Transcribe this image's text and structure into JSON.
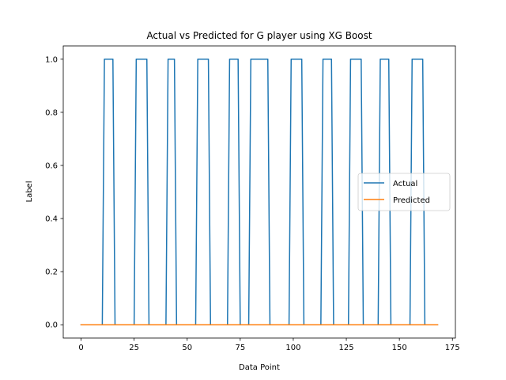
{
  "chart_data": {
    "type": "line",
    "title": "Actual vs Predicted for G player using XG Boost",
    "xlabel": "Data Point",
    "ylabel": "Label",
    "xlim": [
      -8.4,
      176.4
    ],
    "ylim": [
      -0.05,
      1.05
    ],
    "xticks": [
      0,
      25,
      50,
      75,
      100,
      125,
      150,
      175
    ],
    "yticks": [
      0.0,
      0.2,
      0.4,
      0.6,
      0.8,
      1.0
    ],
    "xtick_labels": [
      "0",
      "25",
      "50",
      "75",
      "100",
      "125",
      "150",
      "175"
    ],
    "ytick_labels": [
      "0.0",
      "0.2",
      "0.4",
      "0.6",
      "0.8",
      "1.0"
    ],
    "grid": false,
    "legend": "center-right",
    "series": [
      {
        "name": "Actual",
        "color": "#1f77b4",
        "x": [
          0,
          10,
          11,
          15,
          16,
          25,
          26,
          31,
          32,
          40,
          41,
          44,
          45,
          54,
          55,
          60,
          61,
          69,
          70,
          74,
          75,
          79,
          80,
          88,
          89,
          98,
          99,
          104,
          105,
          113,
          114,
          118,
          119,
          126,
          127,
          132,
          133,
          140,
          141,
          145,
          146,
          155,
          156,
          161,
          162,
          168
        ],
        "y": [
          0,
          0,
          1,
          1,
          0,
          0,
          1,
          1,
          0,
          0,
          1,
          1,
          0,
          0,
          1,
          1,
          0,
          0,
          1,
          1,
          0,
          0,
          1,
          1,
          0,
          0,
          1,
          1,
          0,
          0,
          1,
          1,
          0,
          0,
          1,
          1,
          0,
          0,
          1,
          1,
          0,
          0,
          1,
          1,
          0,
          0
        ]
      },
      {
        "name": "Predicted",
        "color": "#ff7f0e",
        "x": [
          0,
          168
        ],
        "y": [
          0,
          0
        ]
      }
    ]
  }
}
